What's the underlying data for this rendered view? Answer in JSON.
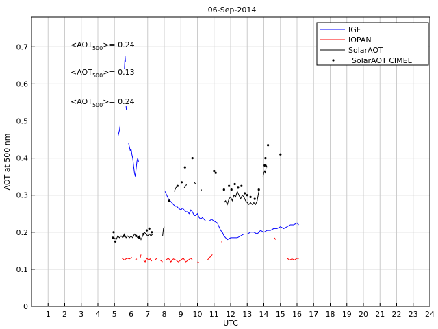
{
  "chart_data": {
    "type": "line",
    "title": "06-Sep-2014",
    "xlabel": "UTC",
    "ylabel": "AOT at 500 nm",
    "xlim": [
      0,
      24
    ],
    "ylim": [
      0,
      0.78
    ],
    "grid": true,
    "legend_position": "top-right",
    "xticks": [
      "1",
      "2",
      "3",
      "4",
      "5",
      "6",
      "7",
      "8",
      "9",
      "10",
      "11",
      "12",
      "13",
      "14",
      "15",
      "16",
      "17",
      "18",
      "19",
      "20",
      "21",
      "22",
      "23",
      "24"
    ],
    "yticks": [
      "0",
      "0.1",
      "0.2",
      "0.3",
      "0.4",
      "0.5",
      "0.6",
      "0.7"
    ],
    "annotations": [
      {
        "prefix": "<AOT",
        "sub": "500",
        "suffix": ">= 0.24",
        "color": "#0000ff"
      },
      {
        "prefix": "<AOT",
        "sub": "500",
        "suffix": ">= 0.13",
        "color": "#ff0000"
      },
      {
        "prefix": "<AOT",
        "sub": "500",
        "suffix": ">= 0.24",
        "color": "#000000"
      }
    ],
    "series": [
      {
        "name": "IGF",
        "style": "line",
        "color": "#0000ff",
        "segments": [
          [
            [
              5.22,
              0.46
            ],
            [
              5.3,
              0.475
            ],
            [
              5.35,
              0.49
            ]
          ],
          [
            [
              5.6,
              0.64
            ],
            [
              5.62,
              0.66
            ],
            [
              5.64,
              0.675
            ],
            [
              5.66,
              0.66
            ]
          ],
          [
            [
              5.7,
              0.54
            ],
            [
              5.72,
              0.53
            ]
          ],
          [
            [
              5.85,
              0.44
            ],
            [
              5.9,
              0.43
            ],
            [
              5.95,
              0.42
            ],
            [
              6.0,
              0.425
            ],
            [
              6.05,
              0.41
            ],
            [
              6.1,
              0.4
            ],
            [
              6.15,
              0.38
            ],
            [
              6.2,
              0.36
            ],
            [
              6.25,
              0.35
            ],
            [
              6.3,
              0.37
            ],
            [
              6.35,
              0.39
            ],
            [
              6.4,
              0.4
            ],
            [
              6.45,
              0.39
            ]
          ],
          [
            [
              8.05,
              0.31
            ],
            [
              8.15,
              0.3
            ],
            [
              8.25,
              0.29
            ],
            [
              8.35,
              0.285
            ],
            [
              8.45,
              0.28
            ],
            [
              8.55,
              0.275
            ],
            [
              8.65,
              0.27
            ],
            [
              8.75,
              0.27
            ],
            [
              8.85,
              0.265
            ],
            [
              9.0,
              0.26
            ],
            [
              9.1,
              0.265
            ],
            [
              9.2,
              0.26
            ],
            [
              9.3,
              0.255
            ],
            [
              9.4,
              0.255
            ],
            [
              9.5,
              0.25
            ],
            [
              9.6,
              0.26
            ],
            [
              9.7,
              0.255
            ],
            [
              9.8,
              0.245
            ],
            [
              9.9,
              0.245
            ],
            [
              10.0,
              0.25
            ],
            [
              10.1,
              0.24
            ],
            [
              10.2,
              0.235
            ],
            [
              10.3,
              0.24
            ],
            [
              10.4,
              0.235
            ],
            [
              10.5,
              0.23
            ]
          ],
          [
            [
              10.7,
              0.23
            ],
            [
              10.85,
              0.235
            ],
            [
              11.0,
              0.23
            ],
            [
              11.2,
              0.225
            ],
            [
              11.3,
              0.215
            ],
            [
              11.4,
              0.205
            ],
            [
              11.5,
              0.2
            ],
            [
              11.6,
              0.19
            ],
            [
              11.7,
              0.185
            ],
            [
              11.8,
              0.18
            ],
            [
              12.0,
              0.185
            ],
            [
              12.2,
              0.185
            ],
            [
              12.4,
              0.185
            ],
            [
              12.6,
              0.19
            ],
            [
              12.8,
              0.195
            ],
            [
              13.0,
              0.195
            ],
            [
              13.2,
              0.2
            ],
            [
              13.4,
              0.2
            ],
            [
              13.6,
              0.195
            ],
            [
              13.8,
              0.205
            ],
            [
              14.0,
              0.2
            ],
            [
              14.2,
              0.205
            ],
            [
              14.4,
              0.205
            ],
            [
              14.6,
              0.21
            ],
            [
              14.8,
              0.21
            ],
            [
              15.0,
              0.215
            ],
            [
              15.2,
              0.21
            ],
            [
              15.4,
              0.215
            ],
            [
              15.6,
              0.22
            ],
            [
              15.8,
              0.22
            ],
            [
              16.0,
              0.225
            ],
            [
              16.1,
              0.22
            ]
          ]
        ]
      },
      {
        "name": "IOPAN",
        "style": "line",
        "color": "#ff0000",
        "segments": [
          [
            [
              5.45,
              0.13
            ],
            [
              5.6,
              0.125
            ],
            [
              5.75,
              0.13
            ],
            [
              5.9,
              0.128
            ],
            [
              6.05,
              0.132
            ]
          ],
          [
            [
              6.25,
              0.125
            ],
            [
              6.35,
              0.128
            ]
          ],
          [
            [
              6.55,
              0.13
            ],
            [
              6.6,
              0.14
            ]
          ],
          [
            [
              6.75,
              0.125
            ],
            [
              6.85,
              0.12
            ],
            [
              6.95,
              0.13
            ],
            [
              7.05,
              0.125
            ],
            [
              7.15,
              0.128
            ],
            [
              7.25,
              0.122
            ]
          ],
          [
            [
              7.45,
              0.125
            ],
            [
              7.55,
              0.13
            ]
          ],
          [
            [
              7.75,
              0.125
            ],
            [
              7.9,
              0.12
            ]
          ],
          [
            [
              8.1,
              0.125
            ],
            [
              8.25,
              0.13
            ],
            [
              8.4,
              0.12
            ],
            [
              8.55,
              0.128
            ],
            [
              8.7,
              0.125
            ],
            [
              8.85,
              0.12
            ],
            [
              9.0,
              0.125
            ],
            [
              9.15,
              0.13
            ],
            [
              9.3,
              0.12
            ],
            [
              9.45,
              0.125
            ],
            [
              9.6,
              0.13
            ],
            [
              9.7,
              0.125
            ]
          ],
          [
            [
              10.0,
              0.12
            ],
            [
              10.1,
              0.118
            ]
          ],
          [
            [
              10.6,
              0.125
            ],
            [
              10.7,
              0.13
            ],
            [
              10.8,
              0.135
            ],
            [
              10.9,
              0.14
            ]
          ],
          [
            [
              11.45,
              0.175
            ],
            [
              11.5,
              0.17
            ]
          ],
          [
            [
              14.65,
              0.185
            ],
            [
              14.7,
              0.18
            ]
          ],
          [
            [
              15.4,
              0.13
            ],
            [
              15.55,
              0.125
            ],
            [
              15.7,
              0.128
            ],
            [
              15.85,
              0.125
            ],
            [
              16.0,
              0.13
            ],
            [
              16.1,
              0.128
            ]
          ]
        ]
      },
      {
        "name": "SolarAOT",
        "style": "line",
        "color": "#000000",
        "segments": [
          [
            [
              5.0,
              0.185
            ],
            [
              5.1,
              0.18
            ],
            [
              5.2,
              0.19
            ],
            [
              5.3,
              0.185
            ],
            [
              5.4,
              0.19
            ],
            [
              5.5,
              0.185
            ],
            [
              5.6,
              0.195
            ],
            [
              5.7,
              0.185
            ],
            [
              5.8,
              0.19
            ],
            [
              5.9,
              0.185
            ],
            [
              6.0,
              0.19
            ],
            [
              6.1,
              0.185
            ],
            [
              6.2,
              0.195
            ],
            [
              6.3,
              0.19
            ],
            [
              6.4,
              0.185
            ],
            [
              6.5,
              0.19
            ],
            [
              6.6,
              0.18
            ],
            [
              6.7,
              0.19
            ],
            [
              6.8,
              0.2
            ],
            [
              6.9,
              0.195
            ],
            [
              7.0,
              0.19
            ],
            [
              7.1,
              0.195
            ],
            [
              7.2,
              0.19
            ],
            [
              7.3,
              0.195
            ]
          ],
          [
            [
              7.9,
              0.19
            ],
            [
              7.95,
              0.21
            ],
            [
              8.0,
              0.215
            ]
          ],
          [
            [
              8.6,
              0.31
            ],
            [
              8.7,
              0.32
            ],
            [
              8.8,
              0.325
            ]
          ],
          [
            [
              9.2,
              0.32
            ],
            [
              9.3,
              0.325
            ],
            [
              9.35,
              0.33
            ]
          ],
          [
            [
              9.8,
              0.335
            ],
            [
              9.9,
              0.33
            ]
          ],
          [
            [
              10.2,
              0.31
            ],
            [
              10.25,
              0.315
            ]
          ],
          [
            [
              11.6,
              0.28
            ],
            [
              11.7,
              0.285
            ],
            [
              11.8,
              0.275
            ],
            [
              11.9,
              0.29
            ],
            [
              12.0,
              0.295
            ],
            [
              12.1,
              0.285
            ],
            [
              12.2,
              0.3
            ],
            [
              12.3,
              0.295
            ],
            [
              12.4,
              0.31
            ],
            [
              12.5,
              0.3
            ],
            [
              12.6,
              0.29
            ],
            [
              12.7,
              0.3
            ],
            [
              12.8,
              0.295
            ],
            [
              12.9,
              0.285
            ],
            [
              13.0,
              0.28
            ],
            [
              13.1,
              0.275
            ],
            [
              13.2,
              0.28
            ],
            [
              13.3,
              0.275
            ],
            [
              13.4,
              0.28
            ],
            [
              13.5,
              0.275
            ],
            [
              13.6,
              0.285
            ],
            [
              13.7,
              0.31
            ]
          ],
          [
            [
              13.95,
              0.35
            ],
            [
              14.0,
              0.36
            ],
            [
              14.05,
              0.365
            ],
            [
              14.1,
              0.36
            ],
            [
              14.15,
              0.38
            ],
            [
              14.2,
              0.375
            ]
          ]
        ]
      },
      {
        "name": "SolarAOT CIMEL",
        "style": "marker",
        "color": "#000000",
        "points": [
          [
            4.9,
            0.185
          ],
          [
            4.95,
            0.2
          ],
          [
            5.05,
            0.175
          ],
          [
            5.55,
            0.19
          ],
          [
            6.3,
            0.19
          ],
          [
            6.5,
            0.185
          ],
          [
            6.75,
            0.195
          ],
          [
            6.95,
            0.205
          ],
          [
            7.1,
            0.21
          ],
          [
            7.25,
            0.2
          ],
          [
            8.3,
            0.285
          ],
          [
            8.8,
            0.325
          ],
          [
            9.05,
            0.335
          ],
          [
            9.25,
            0.375
          ],
          [
            9.7,
            0.4
          ],
          [
            11.0,
            0.365
          ],
          [
            11.1,
            0.36
          ],
          [
            11.6,
            0.315
          ],
          [
            11.9,
            0.325
          ],
          [
            12.05,
            0.315
          ],
          [
            12.25,
            0.33
          ],
          [
            12.45,
            0.32
          ],
          [
            12.65,
            0.325
          ],
          [
            12.85,
            0.305
          ],
          [
            13.0,
            0.3
          ],
          [
            13.2,
            0.295
          ],
          [
            13.45,
            0.29
          ],
          [
            13.7,
            0.315
          ],
          [
            14.05,
            0.38
          ],
          [
            14.1,
            0.4
          ],
          [
            14.25,
            0.435
          ],
          [
            15.0,
            0.41
          ]
        ]
      }
    ]
  }
}
